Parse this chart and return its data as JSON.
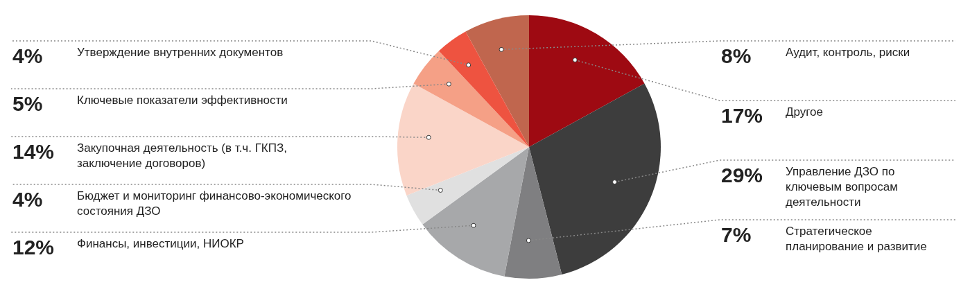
{
  "chart_data": {
    "type": "pie",
    "categories": [
      "Аудит, контроль, риски",
      "Другое",
      "Управление ДЗО по ключевым вопросам деятельности",
      "Стратегическое планирование и развитие",
      "Финансы, инвестиции, НИОКР",
      "Бюджет и мониторинг финансово-экономического состояния ДЗО",
      "Закупочная деятельность (в т.ч. ГКПЗ, заключение договоров)",
      "Ключевые показатели эффективности",
      "Утверждение внутренних документов"
    ],
    "values": [
      8,
      17,
      29,
      7,
      12,
      4,
      14,
      5,
      4
    ],
    "value_labels": [
      "8%",
      "17%",
      "29%",
      "7%",
      "12%",
      "4%",
      "14%",
      "5%",
      "4%"
    ],
    "colors": [
      "#c0664e",
      "#9e0a12",
      "#3d3d3d",
      "#7f7f81",
      "#a7a8aa",
      "#e0e0e0",
      "#fad5c8",
      "#f5a086",
      "#ee5340"
    ]
  }
}
